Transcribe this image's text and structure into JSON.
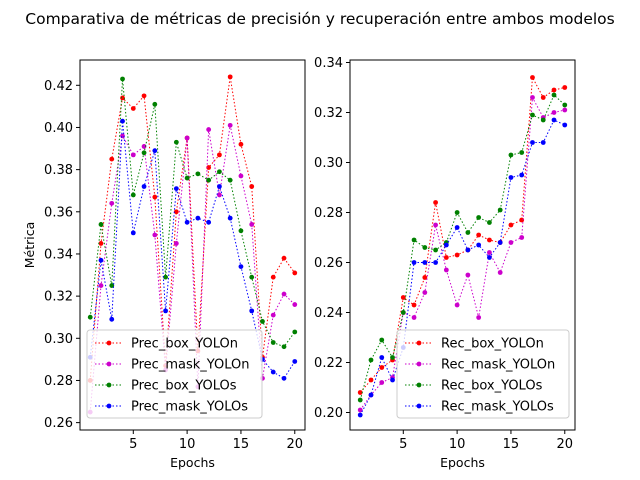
{
  "title": "Comparativa de métricas de precisión y recuperación entre ambos modelos",
  "chart_data": [
    {
      "type": "line",
      "xlabel": "Epochs",
      "ylabel": "Métrica",
      "xlim": [
        0.05,
        20.95
      ],
      "ylim": [
        0.2565,
        0.432
      ],
      "xticks": [
        5,
        10,
        15,
        20
      ],
      "yticks": [
        0.26,
        0.28,
        0.3,
        0.32,
        0.34,
        0.36,
        0.38,
        0.4,
        0.42
      ],
      "x": [
        1,
        2,
        3,
        4,
        5,
        6,
        7,
        8,
        9,
        10,
        11,
        12,
        13,
        14,
        15,
        16,
        17,
        18,
        19,
        20
      ],
      "legend_position": "lower left",
      "series": [
        {
          "name": "Prec_box_YOLOn",
          "color": "#ff0000",
          "values": [
            0.28,
            0.345,
            0.385,
            0.414,
            0.409,
            0.415,
            0.367,
            0.287,
            0.36,
            0.395,
            0.294,
            0.381,
            0.387,
            0.424,
            0.392,
            0.372,
            0.291,
            0.329,
            0.338,
            0.331
          ]
        },
        {
          "name": "Prec_mask_YOLOn",
          "color": "#cc00cc",
          "values": [
            0.265,
            0.325,
            0.364,
            0.396,
            0.387,
            0.391,
            0.349,
            0.285,
            0.345,
            0.395,
            0.277,
            0.399,
            0.368,
            0.401,
            0.377,
            0.354,
            0.281,
            0.311,
            0.321,
            0.316
          ]
        },
        {
          "name": "Prec_box_YOLOs",
          "color": "#008000",
          "values": [
            0.31,
            0.354,
            0.325,
            0.423,
            0.368,
            0.388,
            0.411,
            0.329,
            0.393,
            0.376,
            0.378,
            0.375,
            0.379,
            0.375,
            0.351,
            0.329,
            0.308,
            0.298,
            0.296,
            0.303
          ]
        },
        {
          "name": "Prec_mask_YOLOs",
          "color": "#0000ff",
          "values": [
            0.291,
            0.337,
            0.309,
            0.403,
            0.35,
            0.372,
            0.389,
            0.313,
            0.371,
            0.355,
            0.357,
            0.355,
            0.372,
            0.357,
            0.334,
            0.313,
            0.29,
            0.284,
            0.281,
            0.289
          ]
        }
      ]
    },
    {
      "type": "line",
      "xlabel": "Epochs",
      "ylabel": "",
      "xlim": [
        0.05,
        20.95
      ],
      "ylim": [
        0.193,
        0.341
      ],
      "xticks": [
        5,
        10,
        15,
        20
      ],
      "yticks": [
        0.2,
        0.22,
        0.24,
        0.26,
        0.28,
        0.3,
        0.32,
        0.34
      ],
      "x": [
        1,
        2,
        3,
        4,
        5,
        6,
        7,
        8,
        9,
        10,
        11,
        12,
        13,
        14,
        15,
        16,
        17,
        18,
        19,
        20
      ],
      "legend_position": "lower right",
      "series": [
        {
          "name": "Rec_box_YOLOn",
          "color": "#ff0000",
          "values": [
            0.208,
            0.213,
            0.218,
            0.221,
            0.246,
            0.243,
            0.254,
            0.284,
            0.262,
            0.263,
            0.265,
            0.271,
            0.269,
            0.268,
            0.275,
            0.277,
            0.334,
            0.326,
            0.329,
            0.33
          ]
        },
        {
          "name": "Rec_mask_YOLOn",
          "color": "#cc00cc",
          "values": [
            0.201,
            0.207,
            0.212,
            0.214,
            0.24,
            0.238,
            0.248,
            0.275,
            0.257,
            0.243,
            0.255,
            0.238,
            0.264,
            0.256,
            0.268,
            0.27,
            0.326,
            0.318,
            0.32,
            0.321
          ]
        },
        {
          "name": "Rec_box_YOLOs",
          "color": "#008000",
          "values": [
            0.205,
            0.221,
            0.229,
            0.222,
            0.24,
            0.269,
            0.266,
            0.265,
            0.268,
            0.28,
            0.272,
            0.278,
            0.276,
            0.281,
            0.303,
            0.304,
            0.319,
            0.317,
            0.327,
            0.323
          ]
        },
        {
          "name": "Rec_mask_YOLOs",
          "color": "#0000ff",
          "values": [
            0.199,
            0.207,
            0.222,
            0.213,
            0.226,
            0.26,
            0.26,
            0.26,
            0.267,
            0.274,
            0.265,
            0.267,
            0.262,
            0.268,
            0.294,
            0.295,
            0.308,
            0.308,
            0.317,
            0.315
          ]
        }
      ]
    }
  ]
}
